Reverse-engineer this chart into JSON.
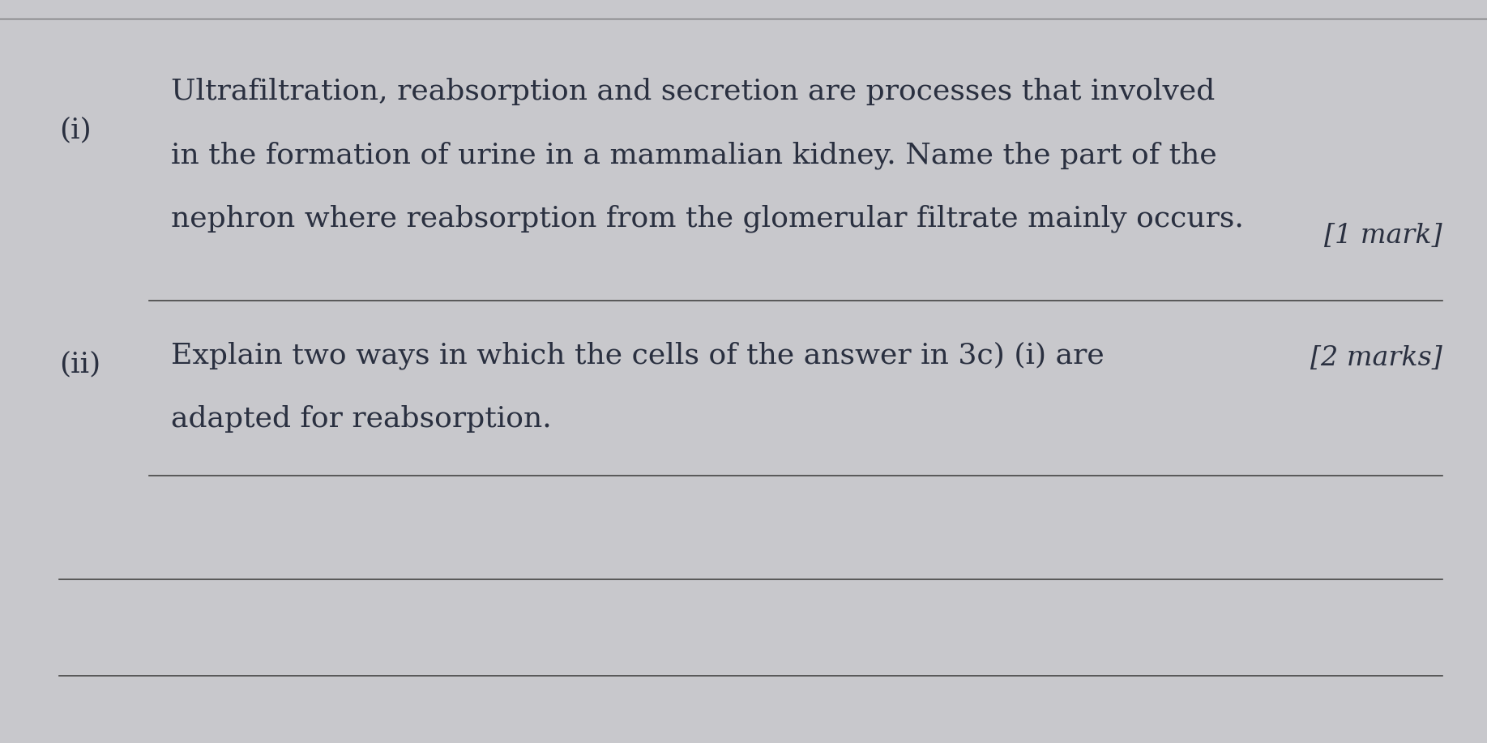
{
  "background_color": "#c8c8cc",
  "paper_color": "#e2e2e6",
  "text_color": "#2a3040",
  "line_color": "#444444",
  "question_i_label": "(i)",
  "question_i_text_line1": "Ultrafiltration, reabsorption and secretion are processes that involved",
  "question_i_text_line2": "in the formation of urine in a mammalian kidney. Name the part of the",
  "question_i_text_line3": "nephron where reabsorption from the glomerular filtrate mainly occurs.",
  "question_i_mark": "[1 mark]",
  "question_ii_label": "(ii)",
  "question_ii_text_line1": "Explain two ways in which the cells of the answer in 3c) (i) are",
  "question_ii_mark": "[2 marks]",
  "question_ii_text_line2": "adapted for reabsorption.",
  "font_size_label": 26,
  "font_size_text": 26,
  "font_size_mark": 24
}
